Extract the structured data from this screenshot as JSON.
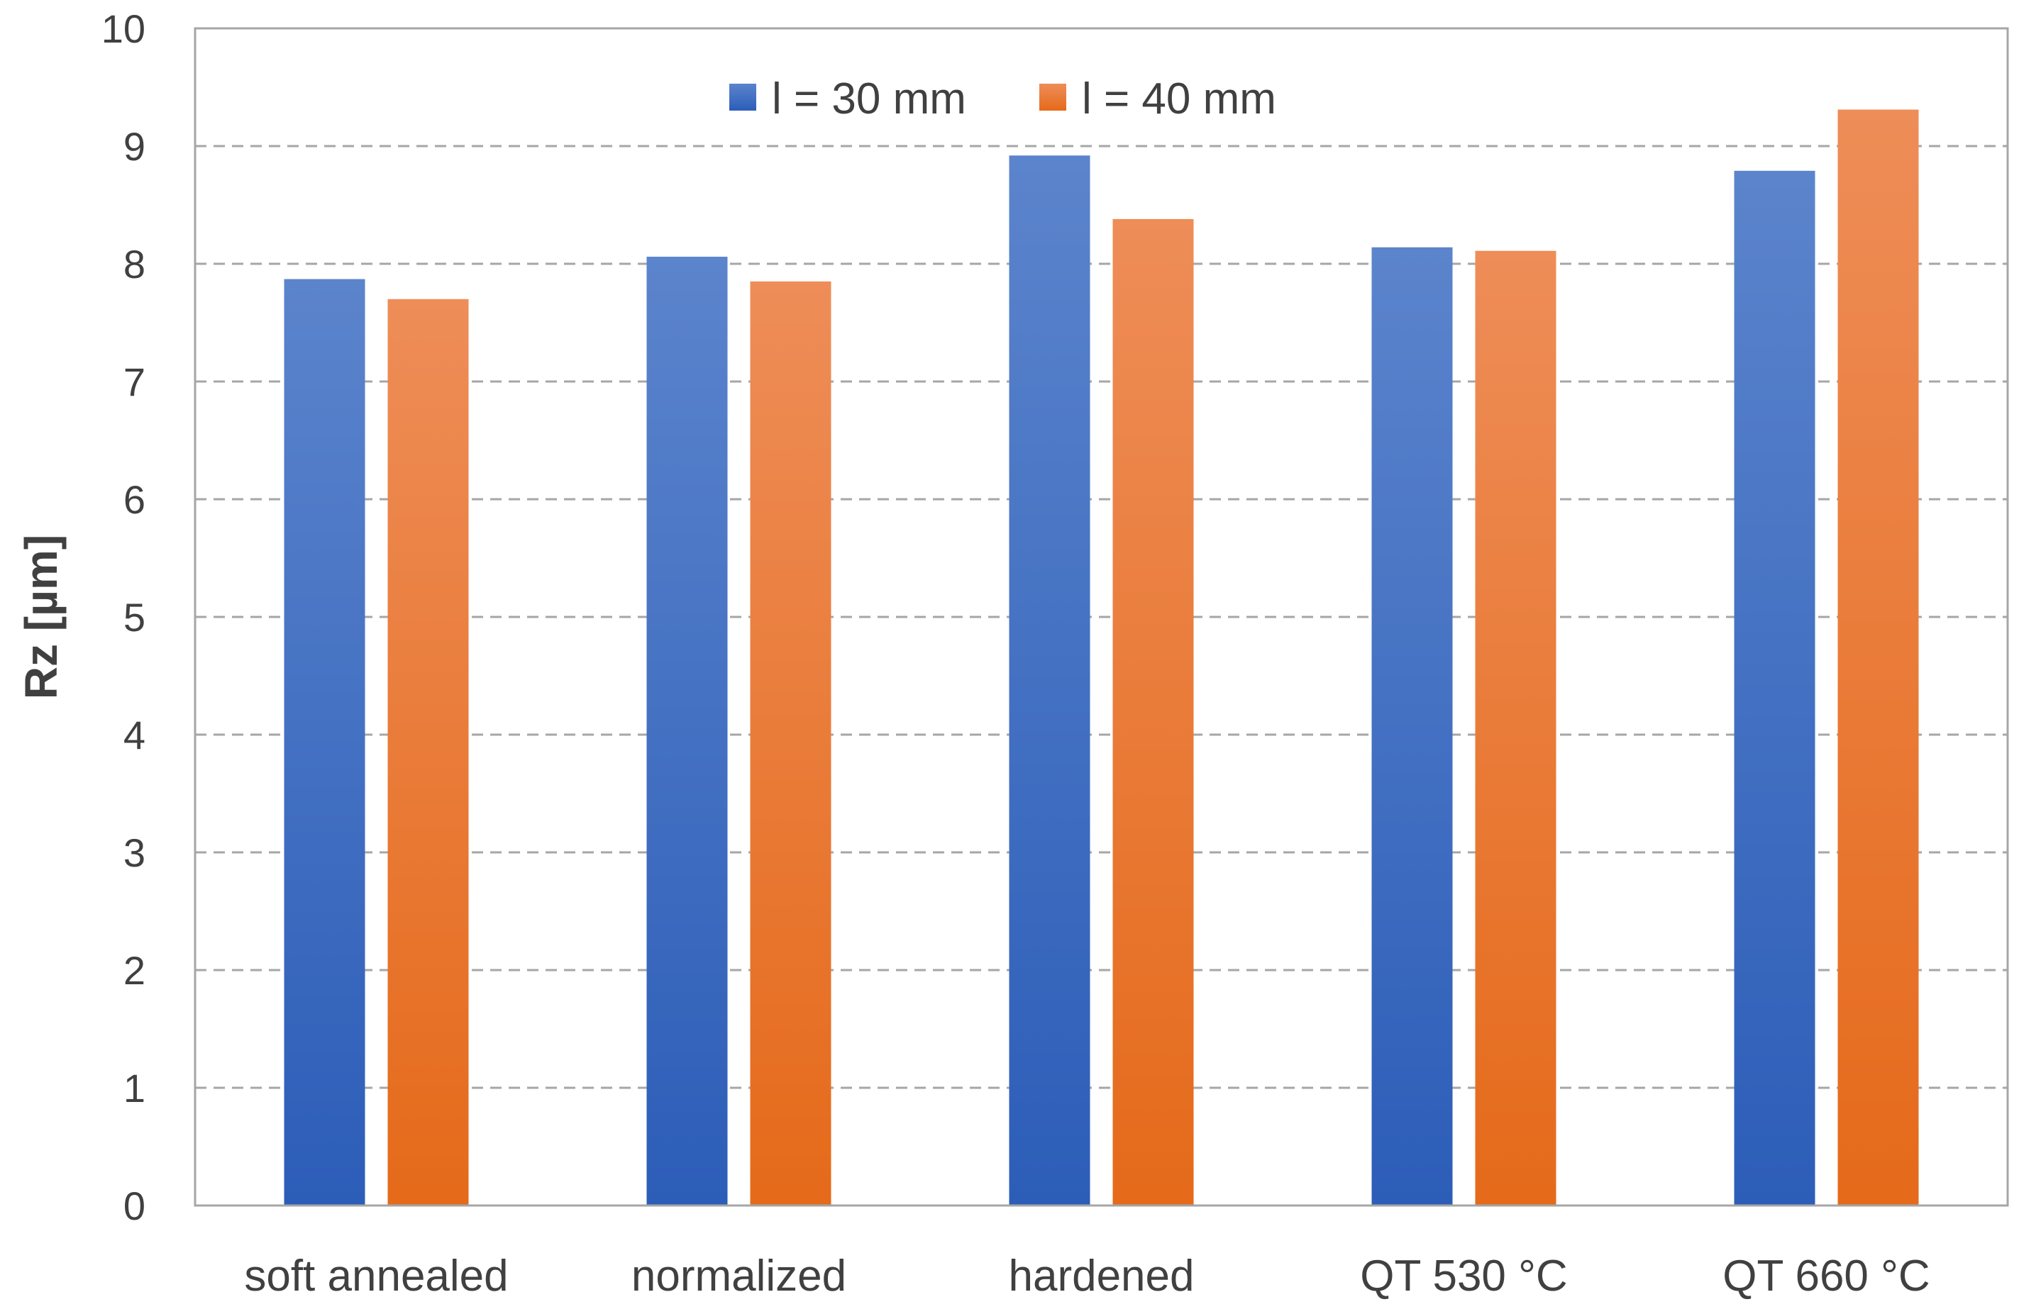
{
  "chart_data": {
    "type": "bar",
    "title": "",
    "xlabel": "",
    "ylabel": "Rz [µm]",
    "ylim": [
      0,
      10
    ],
    "yticks": [
      "0",
      "1",
      "2",
      "3",
      "4",
      "5",
      "6",
      "7",
      "8",
      "9",
      "10"
    ],
    "grid": "horizontal dashed",
    "legend_position": "top-center",
    "categories": [
      "soft annealed",
      "normalized",
      "hardened",
      "QT 530 °C",
      "QT 660 °C"
    ],
    "series": [
      {
        "name": "l = 30 mm",
        "color": "#4472C4",
        "values": [
          7.87,
          8.06,
          8.92,
          8.14,
          8.79
        ]
      },
      {
        "name": "l = 40 mm",
        "color": "#ED7D31",
        "values": [
          7.7,
          7.85,
          8.38,
          8.11,
          9.31
        ]
      }
    ]
  }
}
